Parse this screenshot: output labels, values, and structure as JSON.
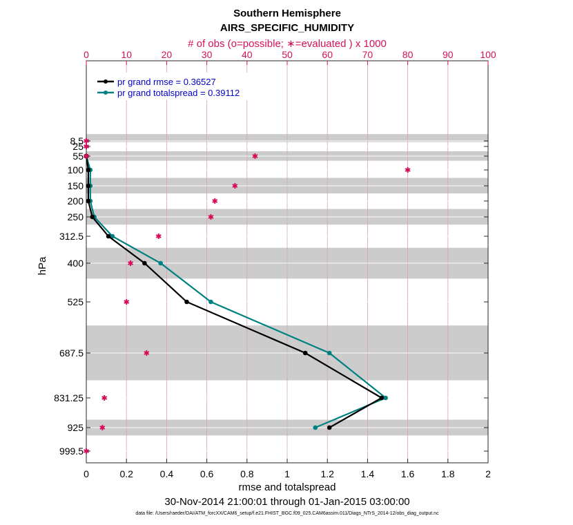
{
  "chart_data": {
    "type": "line",
    "title": "Southern Hemisphere",
    "subtitle": "AIRS_SPECIFIC_HUMIDITY",
    "top_axis_label": "# of obs (o=possible; ∗=evaluated ) x 1000",
    "xlabel": "rmse and totalspread",
    "ylabel": "hPa",
    "date_range": "30-Nov-2014 21:00:01 through 01-Jan-2015 03:00:00",
    "data_file": "data file: /Users/raeder/DAI/ATM_forcXX/CAM6_setup/f.e21.FHIST_BGC.f09_025.CAM6assim.011/Diags_NTrS_2014-12/obs_diag_output.nc",
    "xlim": [
      0,
      2
    ],
    "top_xlim": [
      0,
      100
    ],
    "x_ticks": [
      "0",
      "0.2",
      "0.4",
      "0.6",
      "0.8",
      "1",
      "1.2",
      "1.4",
      "1.6",
      "1.8",
      "2"
    ],
    "top_ticks": [
      "0",
      "10",
      "20",
      "30",
      "40",
      "50",
      "60",
      "70",
      "80",
      "90",
      "100"
    ],
    "y_levels": [
      {
        "label": "8.5",
        "p": 8.5
      },
      {
        "label": "25",
        "p": 25
      },
      {
        "label": "55",
        "p": 55
      },
      {
        "label": "100",
        "p": 100
      },
      {
        "label": "150",
        "p": 150
      },
      {
        "label": "200",
        "p": 200
      },
      {
        "label": "250",
        "p": 250
      },
      {
        "label": "312.5",
        "p": 312.5
      },
      {
        "label": "400",
        "p": 400
      },
      {
        "label": "525",
        "p": 525
      },
      {
        "label": "687.5",
        "p": 687.5
      },
      {
        "label": "831.25",
        "p": 831.25
      },
      {
        "label": "925",
        "p": 925
      },
      {
        "label": "999.5",
        "p": 999.5
      }
    ],
    "layer_bands_hPa": [
      [
        5,
        12
      ],
      [
        40,
        70
      ],
      [
        125,
        175
      ],
      [
        225,
        275
      ],
      [
        350,
        450
      ],
      [
        600,
        775
      ],
      [
        900,
        950
      ]
    ],
    "series": [
      {
        "name": "pr grand rmse = 0.36527",
        "color": "#000000",
        "points": [
          [
            0.0,
            55
          ],
          [
            0.01,
            100
          ],
          [
            0.01,
            150
          ],
          [
            0.01,
            200
          ],
          [
            0.03,
            250
          ],
          [
            0.11,
            312.5
          ],
          [
            0.29,
            400
          ],
          [
            0.5,
            525
          ],
          [
            1.09,
            687.5
          ],
          [
            1.47,
            831.25
          ],
          [
            1.21,
            925
          ]
        ]
      },
      {
        "name": "pr grand totalspread = 0.39112",
        "color": "#008080",
        "points": [
          [
            0.0,
            55
          ],
          [
            0.02,
            100
          ],
          [
            0.02,
            150
          ],
          [
            0.02,
            200
          ],
          [
            0.04,
            250
          ],
          [
            0.13,
            312.5
          ],
          [
            0.37,
            400
          ],
          [
            0.62,
            525
          ],
          [
            1.21,
            687.5
          ],
          [
            1.49,
            831.25
          ],
          [
            1.14,
            925
          ]
        ]
      }
    ],
    "obs_counts": {
      "name": "# of obs x 1000",
      "color": "#d60f5b",
      "points": [
        [
          0,
          8.5
        ],
        [
          0,
          25
        ],
        [
          0,
          55
        ],
        [
          42,
          55
        ],
        [
          80,
          100
        ],
        [
          37,
          150
        ],
        [
          32,
          200
        ],
        [
          31,
          250
        ],
        [
          18,
          312.5
        ],
        [
          11,
          400
        ],
        [
          10,
          525
        ],
        [
          15,
          687.5
        ],
        [
          4.5,
          831.25
        ],
        [
          4,
          925
        ],
        [
          0,
          999.5
        ]
      ]
    }
  }
}
